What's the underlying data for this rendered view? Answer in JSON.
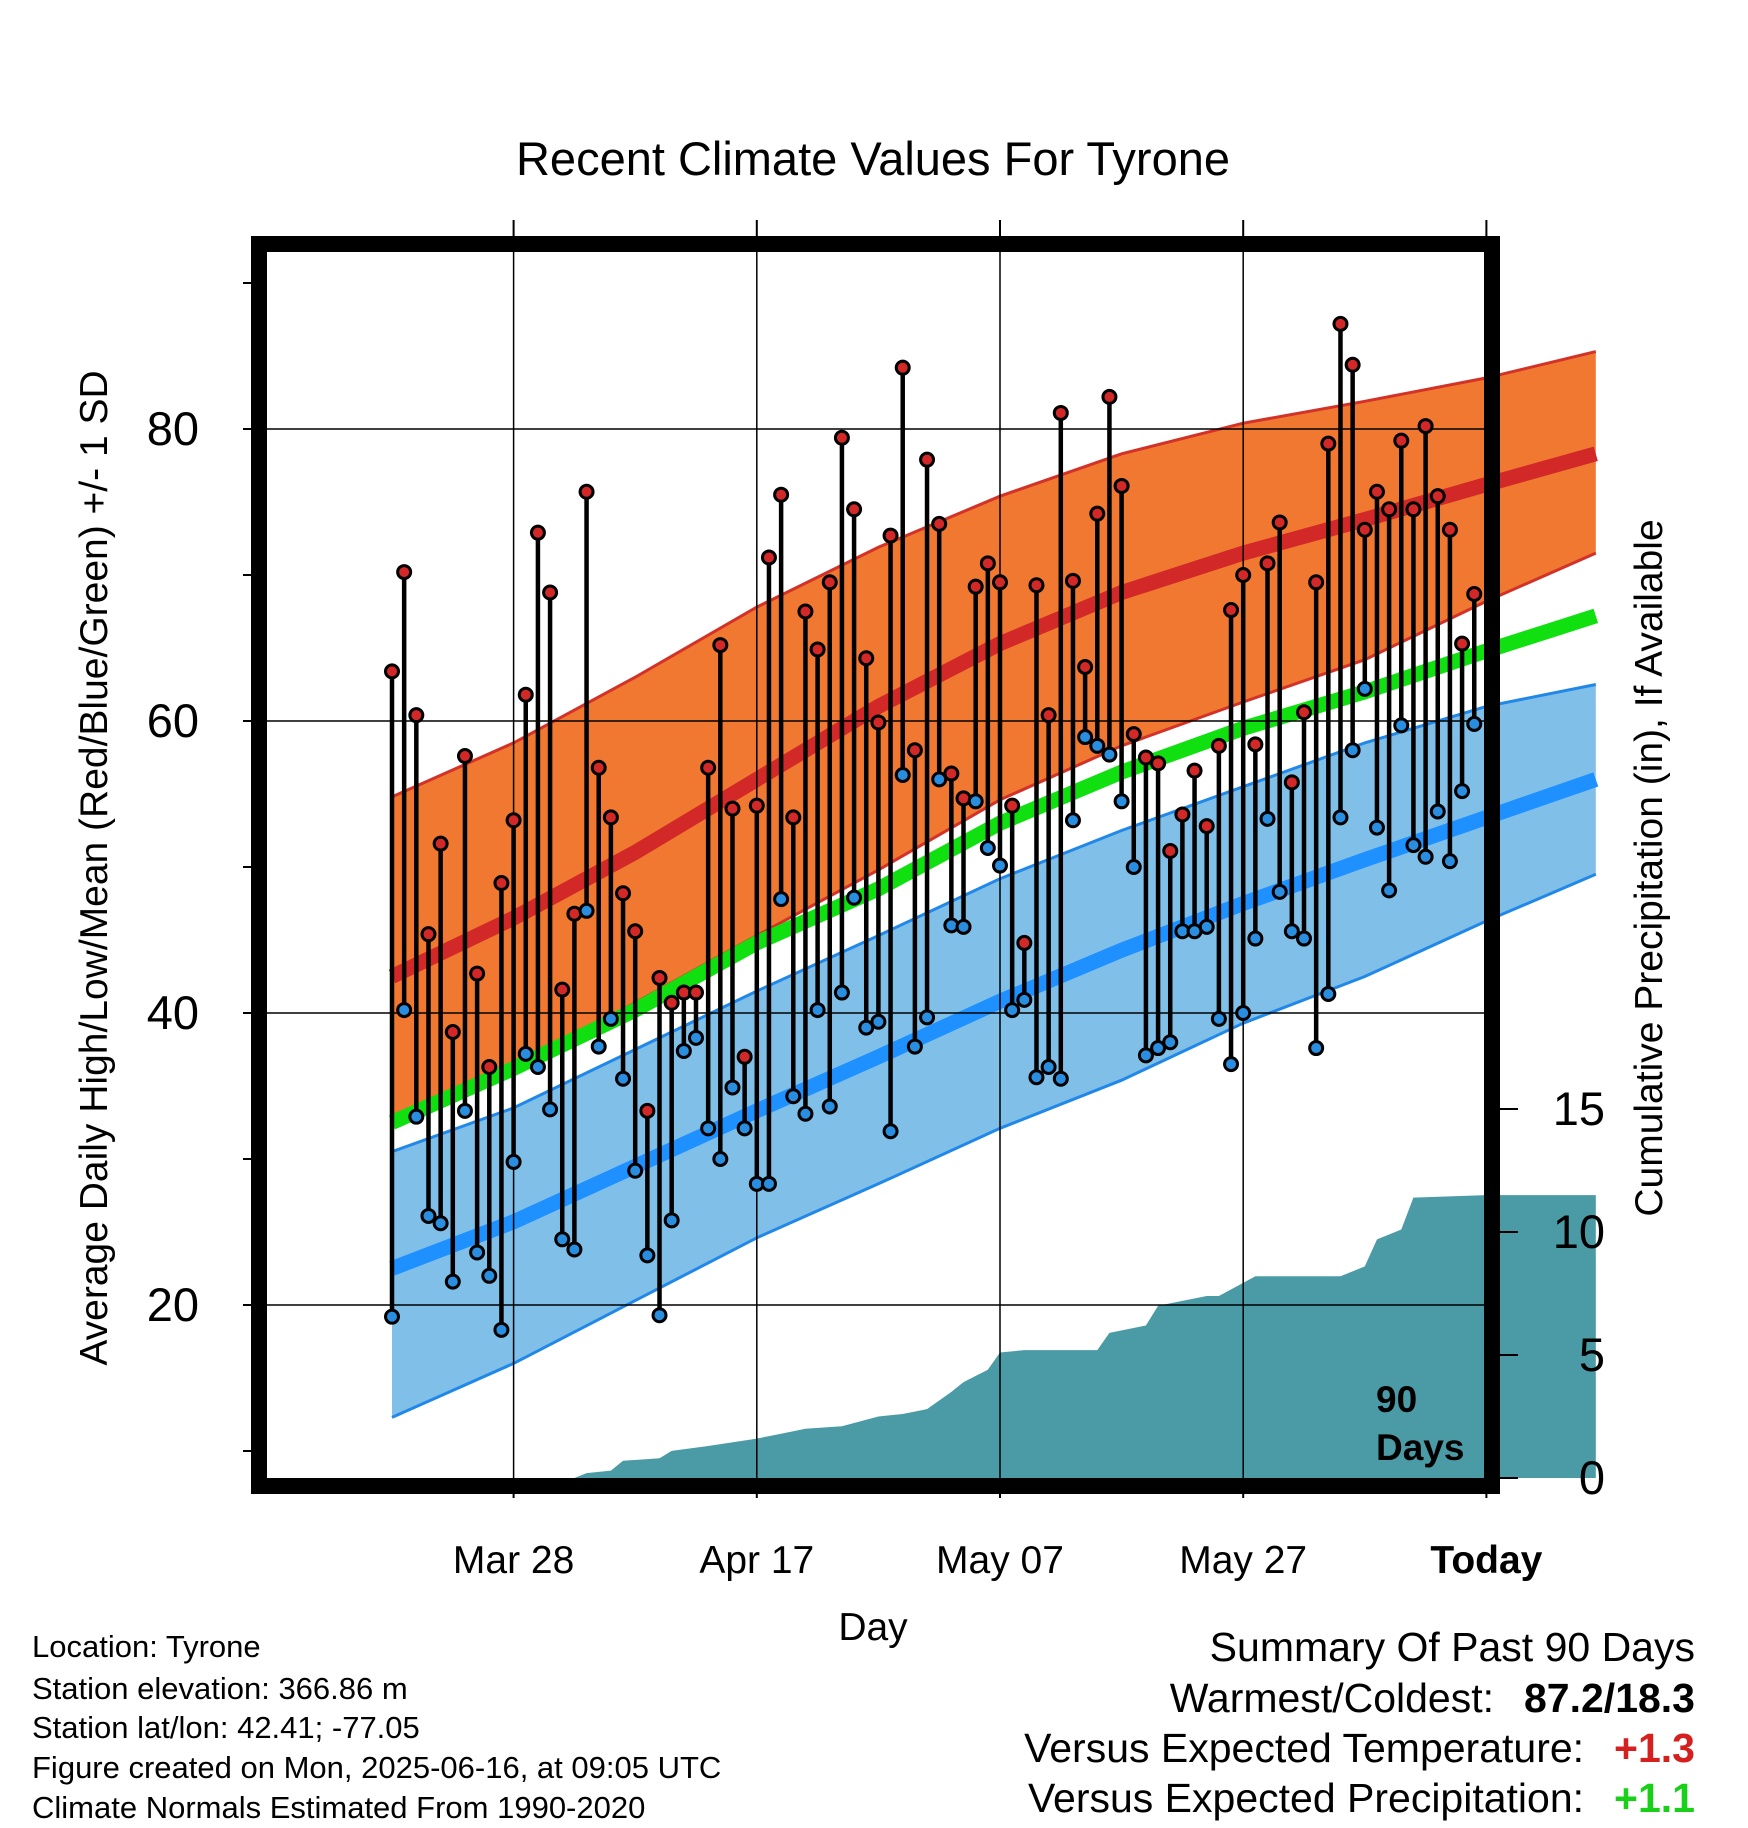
{
  "chart_data": {
    "type": "line",
    "title": "Recent Climate Values For Tyrone",
    "xlabel": "Day",
    "ylabel": "Average Daily High/Low/Mean (Red/Blue/Green) +/- 1 SD",
    "y2label": "Cumulative Precipitation (in), If Available",
    "xlim_day_offsets": [
      -90,
      9
    ],
    "ylim": [
      8,
      92
    ],
    "y2lim": [
      0,
      20
    ],
    "x_tick_labels": [
      {
        "label": "Mar 28",
        "day": -80
      },
      {
        "label": "Apr 17",
        "day": -60
      },
      {
        "label": "May 07",
        "day": -40
      },
      {
        "label": "May 27",
        "day": -20
      },
      {
        "label": "Today",
        "day": 0
      }
    ],
    "y_tick_labels": [
      20,
      40,
      60,
      80
    ],
    "y2_tick_labels": [
      0,
      5,
      10,
      15
    ],
    "window_label": [
      "90",
      "Days"
    ],
    "colors": {
      "high_band": "#f07830",
      "high_band_edge": "#d23228",
      "normal_high": "#d22828",
      "low_band": "#80c0e8",
      "low_band_edge": "#2288e8",
      "normal_low": "#1e90ff",
      "normal_mean": "#10e010",
      "precip": "#4a9ba5",
      "high_marker": "#d22828",
      "low_marker": "#2a8ee0"
    },
    "normals": {
      "day": [
        -90,
        -80,
        -70,
        -60,
        -50,
        -40,
        -30,
        -20,
        -10,
        0,
        9
      ],
      "high": [
        42.5,
        46.5,
        51,
        56,
        61,
        65.3,
        68.8,
        71.5,
        73.8,
        76.2,
        78.3
      ],
      "high_plus_sd": [
        54.8,
        58.5,
        63,
        67.8,
        71.9,
        75.4,
        78.3,
        80.4,
        81.9,
        83.5,
        85.3
      ],
      "high_minus_sd": [
        32.5,
        36.2,
        40.7,
        45.3,
        49.8,
        54.6,
        58.3,
        61.3,
        64.2,
        68.2,
        71.5
      ],
      "low": [
        22.5,
        25.7,
        29.5,
        33.3,
        37,
        40.8,
        44.3,
        47.5,
        50.5,
        53.4,
        56
      ],
      "low_plus_sd": [
        30.5,
        33.5,
        37.5,
        41.5,
        45.3,
        49.2,
        52.5,
        55.5,
        58.5,
        61,
        62.5
      ],
      "low_minus_sd": [
        12.3,
        16,
        20.3,
        24.6,
        28.3,
        32.1,
        35.4,
        39.3,
        42.5,
        46.3,
        49.5
      ],
      "mean": [
        32.5,
        36.2,
        40.2,
        44.8,
        48.5,
        53,
        56.5,
        59.5,
        62,
        64.8,
        67.2
      ]
    },
    "daily_high": [
      63.4,
      70.2,
      60.4,
      45.4,
      51.6,
      38.7,
      57.6,
      42.7,
      36.3,
      48.9,
      53.2,
      61.8,
      72.9,
      68.8,
      41.6,
      46.8,
      75.7,
      56.8,
      53.4,
      48.2,
      45.6,
      33.3,
      42.4,
      40.7,
      41.4,
      41.4,
      56.8,
      65.2,
      54,
      37,
      54.2,
      71.2,
      75.5,
      53.4,
      67.5,
      64.9,
      69.5,
      79.4,
      74.5,
      64.3,
      59.9,
      72.7,
      84.2,
      58,
      77.9,
      73.5,
      56.4,
      54.7,
      69.2,
      70.8,
      69.5,
      54.2,
      44.8,
      69.3,
      60.4,
      81.1,
      69.6,
      63.7,
      74.2,
      82.2,
      76.1,
      59.1,
      57.5,
      57.1,
      51.1,
      53.6,
      56.6,
      52.8,
      58.3,
      67.6,
      70,
      58.4,
      70.8,
      73.6,
      55.8,
      60.6,
      69.5,
      79,
      87.2,
      84.4,
      73.1,
      75.7,
      74.5,
      79.2,
      74.5,
      80.2,
      75.4,
      73.1,
      65.3,
      68.7
    ],
    "daily_low": [
      19.2,
      40.2,
      32.9,
      26.1,
      25.6,
      21.6,
      33.3,
      23.6,
      22,
      18.3,
      29.8,
      37.2,
      36.3,
      33.4,
      24.5,
      23.8,
      47,
      37.7,
      39.6,
      35.5,
      29.2,
      23.4,
      19.3,
      25.8,
      37.4,
      38.3,
      32.1,
      30,
      34.9,
      32.1,
      28.3,
      28.3,
      47.8,
      34.3,
      33.1,
      40.2,
      33.6,
      41.4,
      47.9,
      39,
      39.4,
      31.9,
      56.3,
      37.7,
      39.7,
      56,
      46,
      45.9,
      54.5,
      51.3,
      50.1,
      40.2,
      40.9,
      35.6,
      36.3,
      35.5,
      53.2,
      58.9,
      58.3,
      57.7,
      54.5,
      50,
      37.1,
      37.6,
      38,
      45.6,
      45.6,
      45.9,
      39.6,
      36.5,
      40,
      45.1,
      53.3,
      48.3,
      45.6,
      45.1,
      37.6,
      41.3,
      53.4,
      58,
      62.2,
      52.7,
      48.4,
      59.7,
      51.5,
      50.7,
      53.8,
      50.4,
      55.2,
      59.8
    ],
    "precip_cumulative": {
      "day": [
        -90,
        -75,
        -74,
        -72,
        -71,
        -68,
        -67,
        -64,
        -60,
        -58,
        -56,
        -53,
        -50,
        -48,
        -46,
        -44,
        -43,
        -41,
        -40,
        -38,
        -32,
        -31,
        -28,
        -27,
        -23,
        -22,
        -19,
        -18,
        -12,
        -10,
        -9,
        -7,
        -6,
        0,
        9
      ],
      "value": [
        0,
        0,
        0.2,
        0.3,
        0.7,
        0.8,
        1.1,
        1.3,
        1.6,
        1.8,
        2,
        2.1,
        2.5,
        2.6,
        2.8,
        3.5,
        3.9,
        4.4,
        5.1,
        5.2,
        5.2,
        5.9,
        6.2,
        7,
        7.4,
        7.4,
        8.2,
        8.2,
        8.2,
        8.6,
        9.7,
        10.1,
        11.4,
        11.5,
        11.5
      ]
    }
  },
  "info": {
    "location": "Location: Tyrone",
    "elevation": "Station elevation: 366.86 m",
    "latlon": "Station lat/lon: 42.41; -77.05",
    "created": "Figure created on Mon, 2025-06-16, at 09:05 UTC",
    "normals": "Climate Normals Estimated From 1990-2020"
  },
  "summary": {
    "title": "Summary Of Past 90 Days",
    "warmest_label": "Warmest/Coldest:",
    "warmest_value": "87.2/18.3",
    "temp_label": "Versus Expected Temperature:",
    "temp_value": "+1.3",
    "temp_color": "#d62020",
    "precip_label": "Versus Expected Precipitation:",
    "precip_value": "+1.1",
    "precip_color": "#18d018"
  }
}
